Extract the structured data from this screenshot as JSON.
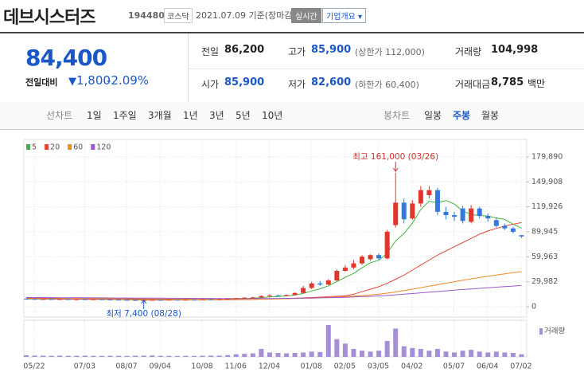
{
  "header": {
    "title": "데브시스터즈",
    "code": "194480",
    "market": "코스닥",
    "date": "2021.07.09 기준(장마감)",
    "buttons": [
      "실시간",
      "기업개요"
    ]
  },
  "quote": {
    "price": "84,400",
    "change_label": "전일대비",
    "change": "1,800",
    "rate": "-2.09%",
    "stats": [
      [
        {
          "label": "전일",
          "value": "86,200"
        },
        {
          "label": "고가",
          "value": "85,900",
          "note": "(상한가 112,000)",
          "color": "#1a57c7"
        },
        {
          "label": "거래량",
          "value": "104,998"
        }
      ],
      [
        {
          "label": "시가",
          "value": "85,900",
          "color": "#1a57c7"
        },
        {
          "label": "저가",
          "value": "82,600",
          "note": "(하한가 60,400)",
          "color": "#1a57c7"
        },
        {
          "label": "거래대금",
          "value": "8,785",
          "unit": "백만"
        }
      ]
    ]
  },
  "tabs": {
    "line_label": "선차트",
    "line_options": [
      "1일",
      "1주일",
      "3개월",
      "1년",
      "3년",
      "5년",
      "10년"
    ],
    "candle_label": "봉차트",
    "candle_options": [
      "일봉",
      "주봉",
      "월봉"
    ],
    "active": "주봉"
  },
  "chart_data": {
    "type": "candlestick",
    "categories": [
      "05/22",
      null,
      null,
      null,
      null,
      null,
      "07/03",
      null,
      null,
      null,
      null,
      "08/07",
      null,
      null,
      null,
      "09/04",
      null,
      null,
      null,
      null,
      "10/08",
      null,
      null,
      null,
      "11/06",
      null,
      null,
      null,
      "12/04",
      null,
      null,
      null,
      null,
      "01/08",
      null,
      null,
      null,
      "02/05",
      null,
      null,
      null,
      "03/05",
      null,
      null,
      null,
      "04/02",
      null,
      null,
      null,
      null,
      "05/07",
      null,
      null,
      null,
      "06/04",
      null,
      null,
      null,
      "07/02",
      null
    ],
    "up_color": "#e0362c",
    "down_color": "#3478dc",
    "open": [
      9500,
      9300,
      9000,
      9200,
      8900,
      9100,
      8800,
      9000,
      8700,
      8900,
      8600,
      8400,
      8200,
      8000,
      7800,
      7900,
      8200,
      8100,
      8300,
      8200,
      8400,
      8300,
      8700,
      8600,
      8900,
      9400,
      10200,
      10800,
      11200,
      12800,
      13500,
      12900,
      14000,
      16500,
      22500,
      28000,
      26500,
      31500,
      43000,
      47000,
      52000,
      57000,
      62000,
      58000,
      98000,
      125000,
      106000,
      124000,
      134000,
      140000,
      114000,
      110000,
      118000,
      102000,
      118000,
      109000,
      104000,
      97000,
      94000,
      85900
    ],
    "high": [
      10000,
      9600,
      9400,
      9500,
      9300,
      9400,
      9200,
      9300,
      9100,
      9200,
      8900,
      8700,
      8500,
      8300,
      8100,
      8400,
      8600,
      8500,
      8700,
      8600,
      8800,
      8900,
      9200,
      9100,
      9600,
      10500,
      11500,
      12000,
      13500,
      15000,
      14500,
      14500,
      17000,
      25000,
      30000,
      31000,
      33000,
      45000,
      50000,
      56000,
      62000,
      63000,
      64000,
      92000,
      161000,
      130000,
      128000,
      145000,
      145000,
      143000,
      120000,
      114000,
      121000,
      122000,
      120000,
      112000,
      107000,
      100000,
      96000,
      85900
    ],
    "low": [
      9000,
      8800,
      8700,
      8800,
      8600,
      8700,
      8500,
      8600,
      8400,
      8500,
      8200,
      8000,
      7800,
      7600,
      7400,
      7700,
      7900,
      7900,
      8000,
      7900,
      8100,
      8100,
      8400,
      8300,
      8700,
      9100,
      9900,
      10400,
      10800,
      12000,
      12500,
      12600,
      13500,
      16000,
      21000,
      25000,
      26000,
      31000,
      42000,
      45000,
      50000,
      55000,
      56000,
      57000,
      95000,
      100000,
      104000,
      120000,
      130000,
      110000,
      105000,
      103000,
      100000,
      100000,
      106000,
      102000,
      95000,
      92000,
      88000,
      82600
    ],
    "close": [
      9300,
      9000,
      9200,
      8900,
      9100,
      8800,
      9000,
      8700,
      8900,
      8600,
      8400,
      8200,
      8000,
      7800,
      7900,
      8200,
      8100,
      8300,
      8200,
      8400,
      8300,
      8700,
      8600,
      8900,
      9400,
      10200,
      10800,
      11200,
      12800,
      13500,
      12900,
      14000,
      16500,
      22500,
      28000,
      26500,
      31500,
      43000,
      47000,
      52000,
      60000,
      62000,
      58000,
      90000,
      125000,
      105000,
      124000,
      140000,
      140000,
      114000,
      110000,
      108000,
      103000,
      118000,
      109000,
      106000,
      97000,
      94000,
      90000,
      84400
    ],
    "series": [
      {
        "name": "5",
        "color": "#3cb43c",
        "values": [
          9200,
          9150,
          9200,
          9100,
          9100,
          9000,
          9000,
          8900,
          8900,
          8800,
          8700,
          8600,
          8400,
          8200,
          8100,
          8000,
          8000,
          8100,
          8100,
          8200,
          8300,
          8400,
          8400,
          8600,
          8800,
          9200,
          9600,
          10100,
          10900,
          11700,
          12200,
          12900,
          13900,
          15900,
          18800,
          21500,
          25000,
          30300,
          35200,
          40000,
          46700,
          52800,
          55800,
          64400,
          79000,
          88000,
          100400,
          116800,
          126800,
          124600,
          127600,
          123200,
          115000,
          110600,
          109600,
          108800,
          106600,
          104800,
          99200,
          94300
        ]
      },
      {
        "name": "20",
        "color": "#e8453c",
        "values": [
          9800,
          9700,
          9600,
          9500,
          9400,
          9300,
          9200,
          9100,
          9000,
          9000,
          8900,
          8800,
          8700,
          8600,
          8500,
          8500,
          8400,
          8400,
          8300,
          8300,
          8300,
          8300,
          8300,
          8300,
          8400,
          8500,
          8600,
          8800,
          9100,
          9300,
          9500,
          9800,
          10100,
          10500,
          11000,
          11500,
          12000,
          12500,
          13000,
          15000,
          18000,
          21000,
          24000,
          28000,
          33000,
          38000,
          44000,
          50000,
          56000,
          62000,
          67000,
          72000,
          77000,
          82000,
          87000,
          91000,
          94000,
          97000,
          99000,
          101000
        ]
      },
      {
        "name": "60",
        "color": "#f08a24",
        "values": [
          10800,
          10700,
          10600,
          10500,
          10400,
          10300,
          10200,
          10100,
          10000,
          9900,
          9800,
          9700,
          9600,
          9500,
          9400,
          9300,
          9200,
          9100,
          9000,
          9000,
          8900,
          8900,
          8800,
          8800,
          8800,
          8800,
          8800,
          8900,
          9000,
          9100,
          9300,
          9500,
          9700,
          10000,
          10300,
          10600,
          11000,
          11500,
          12000,
          12600,
          13300,
          14100,
          15000,
          16200,
          17700,
          19300,
          21000,
          22800,
          24600,
          26400,
          28200,
          30000,
          31700,
          33400,
          35000,
          36600,
          38100,
          39500,
          40800,
          42000
        ]
      },
      {
        "name": "120",
        "color": "#9b59c9",
        "values": [
          11000,
          10950,
          10900,
          10850,
          10800,
          10750,
          10700,
          10650,
          10600,
          10550,
          10500,
          10450,
          10400,
          10350,
          10300,
          10250,
          10200,
          10150,
          10100,
          10050,
          10000,
          9950,
          9900,
          9850,
          9800,
          9800,
          9800,
          9800,
          9800,
          9850,
          9900,
          10000,
          10100,
          10200,
          10400,
          10600,
          10800,
          11000,
          11300,
          11600,
          12000,
          12400,
          12900,
          13500,
          14200,
          15000,
          15800,
          16600,
          17400,
          18200,
          19000,
          19800,
          20600,
          21300,
          22000,
          22700,
          23400,
          24100,
          24800,
          25500
        ]
      }
    ],
    "volume": {
      "name": "거래량",
      "color": "#a58fd6",
      "values": [
        180000,
        150000,
        140000,
        130000,
        150000,
        120000,
        130000,
        140000,
        120000,
        110000,
        130000,
        120000,
        110000,
        140000,
        150000,
        160000,
        120000,
        110000,
        100000,
        120000,
        110000,
        130000,
        150000,
        140000,
        200000,
        300000,
        350000,
        400000,
        900000,
        500000,
        450000,
        400000,
        450000,
        500000,
        600000,
        550000,
        3600000,
        2000000,
        1500000,
        900000,
        700000,
        600000,
        700000,
        1800000,
        3200000,
        1200000,
        1000000,
        900000,
        700000,
        900000,
        600000,
        500000,
        700000,
        800000,
        600000,
        500000,
        600000,
        500000,
        450000,
        300000
      ]
    },
    "ylim": [
      -9600,
      186600
    ],
    "yticks": [
      {
        "value": 179890,
        "label": "179,890"
      },
      {
        "value": 149908,
        "label": "149,908"
      },
      {
        "value": 119926,
        "label": "119,926"
      },
      {
        "value": 89945,
        "label": "89,945"
      },
      {
        "value": 59963,
        "label": "59,963"
      },
      {
        "value": 29982,
        "label": "29,982"
      },
      0
    ],
    "grid": true,
    "annotations": [
      "최고 161,000 (03/26)",
      "최저 7,400 (08/28)"
    ]
  }
}
